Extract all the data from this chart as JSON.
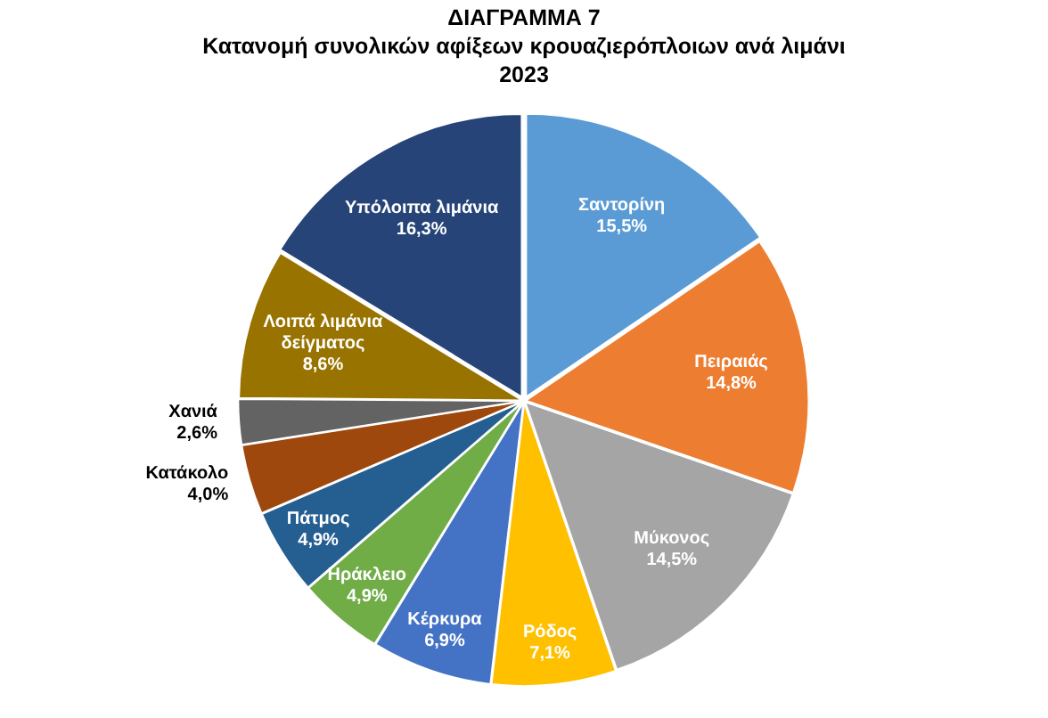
{
  "chart_data": {
    "type": "pie",
    "title": "ΔΙΑΓΡΑΜΜΑ 7\nΚατανομή συνολικών αφίξεων κρουαζιερόπλοιων ανά λιμάνι\n2023",
    "categories": [
      "Σαντορίνη",
      "Πειραιάς",
      "Μύκονος",
      "Ρόδος",
      "Κέρκυρα",
      "Ηράκλειο",
      "Πάτμος",
      "Κατάκολο",
      "Χανιά",
      "Λοιπά λιμάνια δείγματος",
      "Υπόλοιπα λιμάνια"
    ],
    "values": [
      15.5,
      14.8,
      14.5,
      7.1,
      6.9,
      4.9,
      4.9,
      4.0,
      2.6,
      8.6,
      16.3
    ],
    "value_labels": [
      "15,5%",
      "14,8%",
      "14,5%",
      "7,1%",
      "6,9%",
      "4,9%",
      "4,9%",
      "4,0%",
      "2,6%",
      "8,6%",
      "16,3%"
    ],
    "colors": [
      "#5b9bd5",
      "#ed7d31",
      "#a5a5a5",
      "#ffc000",
      "#4472c4",
      "#70ad47",
      "#255e91",
      "#9e480e",
      "#636363",
      "#997300",
      "#264478"
    ],
    "legend": false
  }
}
